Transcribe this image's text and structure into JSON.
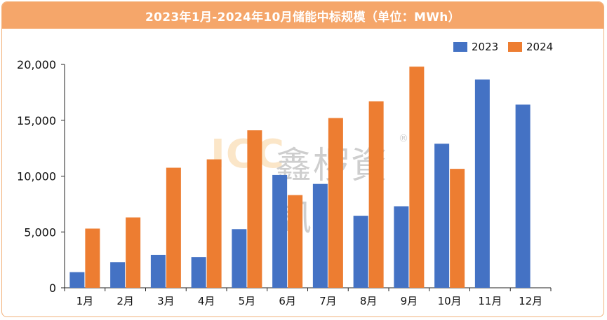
{
  "chart_data": {
    "type": "bar",
    "title": "2023年1月-2024年10月储能中标规模（单位：MWh）",
    "categories": [
      "1月",
      "2月",
      "3月",
      "4月",
      "5月",
      "6月",
      "7月",
      "8月",
      "9月",
      "10月",
      "11月",
      "12月"
    ],
    "series": [
      {
        "name": "2023",
        "color": "#4472c4",
        "values": [
          1400,
          2300,
          2950,
          2750,
          5250,
          10100,
          9300,
          6450,
          7300,
          12900,
          18650,
          16400
        ]
      },
      {
        "name": "2024",
        "color": "#ed7d31",
        "values": [
          5300,
          6300,
          10750,
          11500,
          14100,
          8300,
          15200,
          16700,
          19800,
          10650,
          null,
          null
        ]
      }
    ],
    "ylim": [
      0,
      20000
    ],
    "yticks": [
      0,
      5000,
      10000,
      15000,
      20000
    ],
    "ytick_labels": [
      "0",
      "5,000",
      "10,000",
      "15,000",
      "20,000"
    ],
    "legend_position": "top-right",
    "grid": false,
    "watermark": {
      "latin": "ICC",
      "cjk": "鑫椤資訊",
      "mark": "®"
    }
  }
}
